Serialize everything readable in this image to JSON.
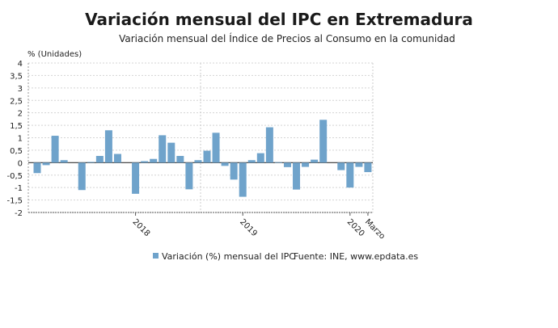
{
  "title": "Variación mensual del IPC en Extremadura",
  "subtitle": "Variación mensual del Índice de Precios al Consumo en la comunidad",
  "chart_data": {
    "type": "bar",
    "ylabel": "% (Unidades)",
    "ylim": [
      -2,
      4
    ],
    "yticks": [
      4,
      3.5,
      3,
      2.5,
      2,
      1.5,
      1,
      0.5,
      0,
      -0.5,
      -1,
      -1.5,
      -2
    ],
    "ytick_labels": [
      "4",
      "3,5",
      "3",
      "2,5",
      "2",
      "1,5",
      "1",
      "0,5",
      "0",
      "-0,5",
      "-1",
      "-1,5",
      "-2"
    ],
    "xtick_labels": [
      {
        "label": "2018",
        "category": "2018-01"
      },
      {
        "label": "2019",
        "category": "2019-01"
      },
      {
        "label": "2020",
        "category": "2020-01"
      },
      {
        "label": "Marzo",
        "category": "2020-03"
      }
    ],
    "grid": true,
    "categories": [
      "2017-02",
      "2017-03",
      "2017-04",
      "2017-05",
      "2017-06",
      "2017-07",
      "2017-08",
      "2017-09",
      "2017-10",
      "2017-11",
      "2017-12",
      "2018-01",
      "2018-02",
      "2018-03",
      "2018-04",
      "2018-05",
      "2018-06",
      "2018-07",
      "2018-08",
      "2018-09",
      "2018-10",
      "2018-11",
      "2018-12",
      "2019-01",
      "2019-02",
      "2019-03",
      "2019-04",
      "2019-05",
      "2019-06",
      "2019-07",
      "2019-08",
      "2019-09",
      "2019-10",
      "2019-11",
      "2019-12",
      "2020-01",
      "2020-02",
      "2020-03"
    ],
    "series": [
      {
        "name": "Variación (%) mensual del IPC",
        "color": "#6fa3cb",
        "values": [
          -0.42,
          -0.1,
          1.08,
          0.1,
          0,
          -1.1,
          0.03,
          0.27,
          1.3,
          0.35,
          0,
          -1.25,
          0.06,
          0.15,
          1.1,
          0.8,
          0.27,
          -1.07,
          0.1,
          0.48,
          1.2,
          -0.13,
          -0.68,
          -1.37,
          0.1,
          0.38,
          1.42,
          0.02,
          -0.18,
          -1.08,
          -0.17,
          0.12,
          1.72,
          0,
          -0.3,
          -1.0,
          -0.17,
          -0.38
        ]
      }
    ],
    "legend_position": "bottom",
    "source": "Fuente: INE, www.epdata.es"
  }
}
